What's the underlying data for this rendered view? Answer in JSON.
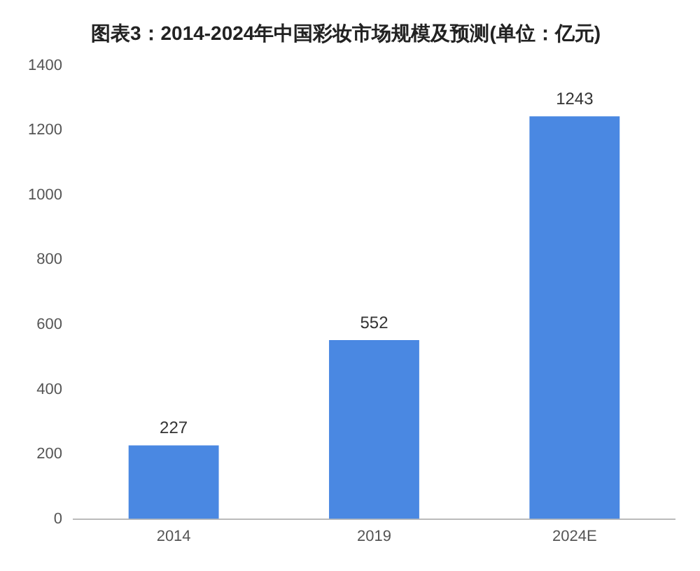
{
  "chart_data": {
    "type": "bar",
    "title": "图表3：2014-2024年中国彩妆市场规模及预测(单位：亿元)",
    "categories": [
      "2014",
      "2019",
      "2024E"
    ],
    "values": [
      227,
      552,
      1243
    ],
    "color": "#4a88e2",
    "ylim": [
      0,
      1400
    ],
    "yticks": [
      0,
      200,
      400,
      600,
      800,
      1000,
      1200,
      1400
    ],
    "data_labels": true,
    "grid": false,
    "legend": false
  }
}
